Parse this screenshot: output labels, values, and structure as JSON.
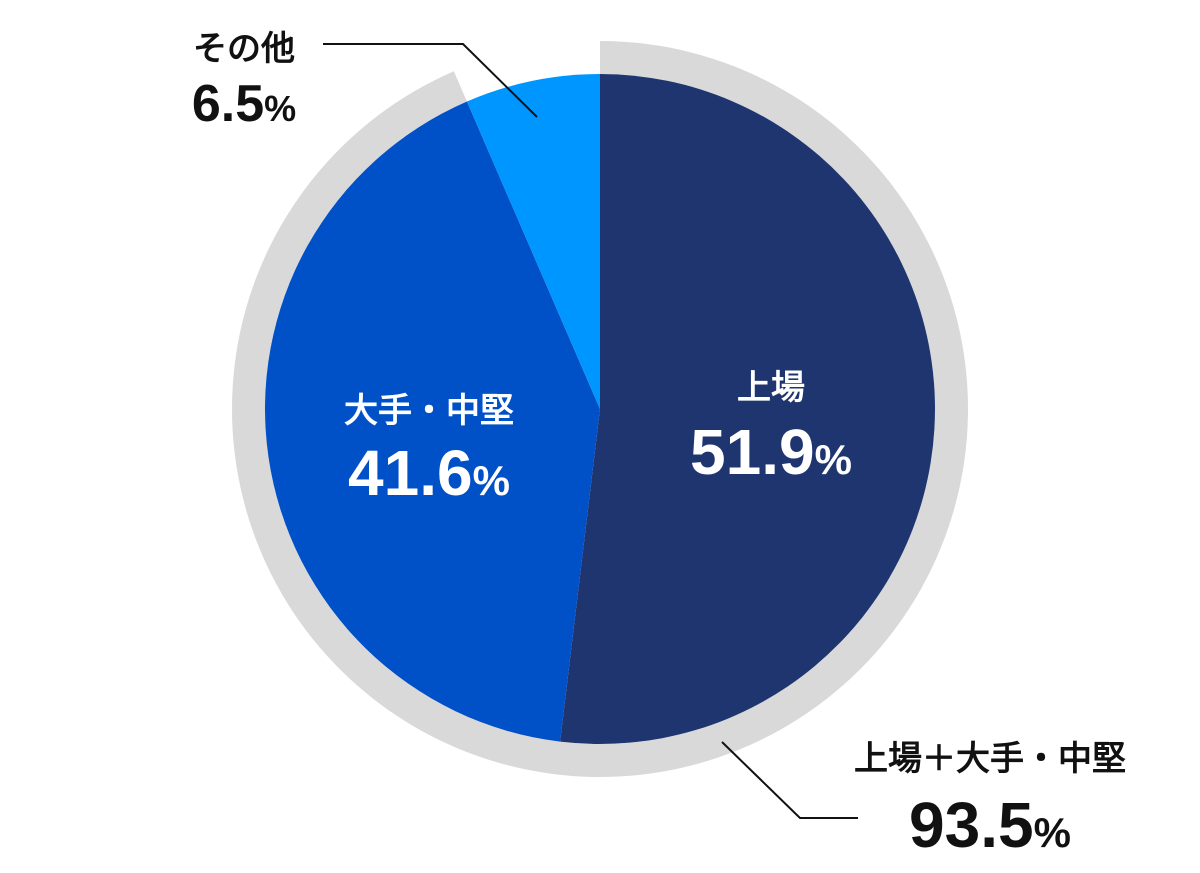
{
  "chart_data": {
    "type": "pie",
    "start": "12 o'clock",
    "direction": "clockwise",
    "slices": [
      {
        "label": "上場",
        "value": 51.9,
        "display": "51.9",
        "unit": "%",
        "color": "#1f356f",
        "label_color": "#ffffff"
      },
      {
        "label": "大手・中堅",
        "value": 41.6,
        "display": "41.6",
        "unit": "%",
        "color": "#0050c8",
        "label_color": "#ffffff"
      },
      {
        "label": "その他",
        "value": 6.5,
        "display": "6.5",
        "unit": "%",
        "color": "#0096ff",
        "label_color": "#111111"
      }
    ],
    "outer_ring": {
      "label": "上場＋大手・中堅",
      "value": 93.5,
      "display": "93.5",
      "unit": "%",
      "color": "#d9d9d9",
      "text_color": "#111111"
    }
  }
}
